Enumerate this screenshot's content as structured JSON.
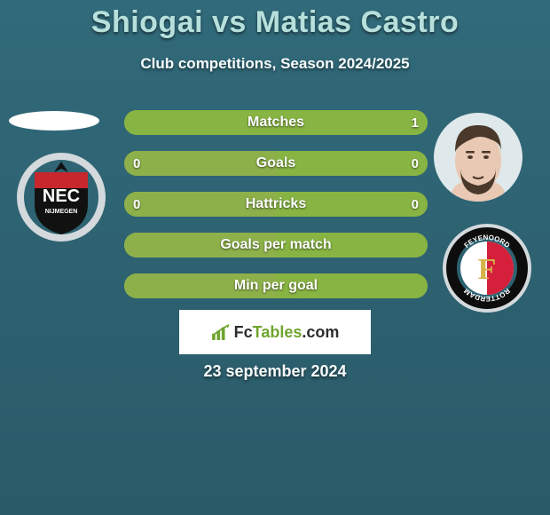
{
  "title": "Shiogai vs Matias Castro",
  "subtitle": "Club competitions, Season 2024/2025",
  "date": "23 september 2024",
  "colors": {
    "background_top": "#316a7a",
    "background_bottom": "#2a5a68",
    "title_color": "#b7e0dc",
    "subtitle_color": "#f7fbfb",
    "date_color": "#f7fbfb",
    "bar_neutral": "#8db04b",
    "bar_left_fill": "#8db04b",
    "bar_right_fill": "#88b443",
    "bar_label_color": "#ffffff",
    "brand_fc": "#2d2d2d",
    "brand_tables": "#6fa52e",
    "avatar_left_bg": "#ffffff",
    "avatar_right_skin": "#e9c9b4",
    "avatar_right_hair": "#4a382a",
    "avatar_right_bg": "#dfe8ea",
    "club_left_ring": "#d3d9dc",
    "club_left_green": "#0f7a3e",
    "club_left_red": "#c8272d",
    "club_left_black": "#111111",
    "club_right_ring": "#d3d9dc",
    "club_right_red": "#d4203b",
    "club_right_black": "#0d0d0d",
    "club_right_gold": "#d6b24a"
  },
  "bars": [
    {
      "label": "Matches",
      "left": "",
      "right": "1",
      "left_pct": 0,
      "right_pct": 100
    },
    {
      "label": "Goals",
      "left": "0",
      "right": "0",
      "left_pct": 50,
      "right_pct": 50
    },
    {
      "label": "Hattricks",
      "left": "0",
      "right": "0",
      "left_pct": 50,
      "right_pct": 50
    },
    {
      "label": "Goals per match",
      "left": "",
      "right": "",
      "left_pct": 50,
      "right_pct": 50
    },
    {
      "label": "Min per goal",
      "left": "",
      "right": "",
      "left_pct": 50,
      "right_pct": 50
    }
  ],
  "brand": {
    "fc": "Fc",
    "tables": "Tables",
    "dotcom": ".com"
  },
  "club_left_text": "NEC",
  "club_left_sub": "NIJMEGEN",
  "club_right_letter": "F",
  "club_right_ring_top": "FEYENOORD",
  "club_right_ring_bottom": "ROTTERDAM"
}
